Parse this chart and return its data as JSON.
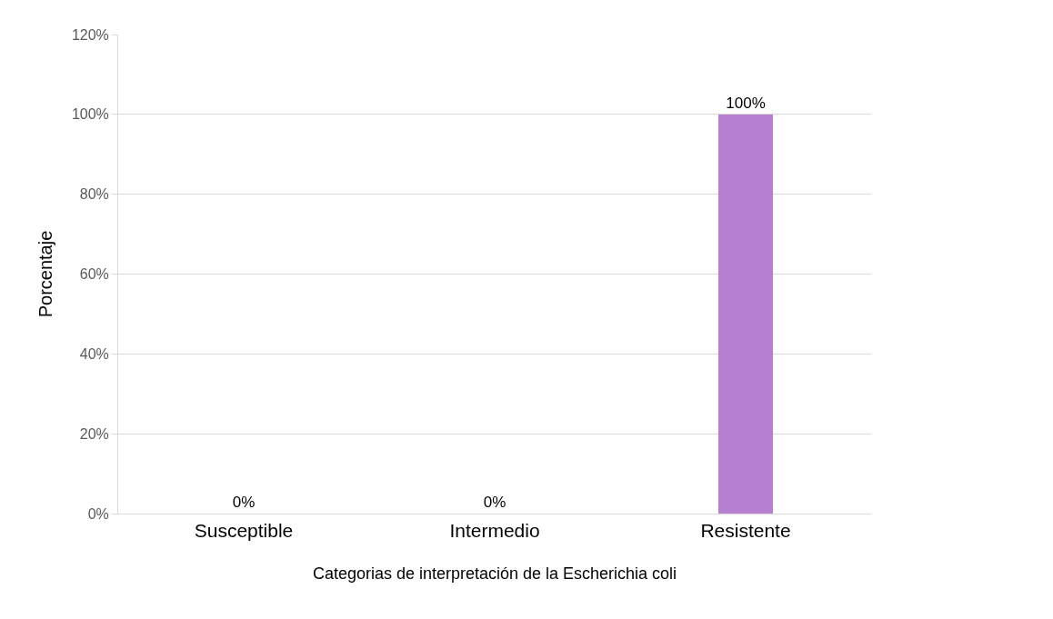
{
  "chart_data": {
    "type": "bar",
    "xlabel": "Categorias de interpretación de la Escherichia coli",
    "ylabel": "Porcentaje",
    "categories": [
      "Susceptible",
      "Intermedio",
      "Resistente"
    ],
    "values": [
      0,
      0,
      100
    ],
    "color": "#b77fcf",
    "value_labels": [
      "0%",
      "0%",
      "100%"
    ],
    "ylim": [
      0,
      120
    ],
    "yticks": [
      {
        "value": 0,
        "label": "0%"
      },
      {
        "value": 20,
        "label": "20%"
      },
      {
        "value": 40,
        "label": "40%"
      },
      {
        "value": 60,
        "label": "60%"
      },
      {
        "value": 80,
        "label": "80%"
      },
      {
        "value": 100,
        "label": "100%"
      },
      {
        "value": 120,
        "label": "120%"
      }
    ],
    "grid": "y"
  }
}
